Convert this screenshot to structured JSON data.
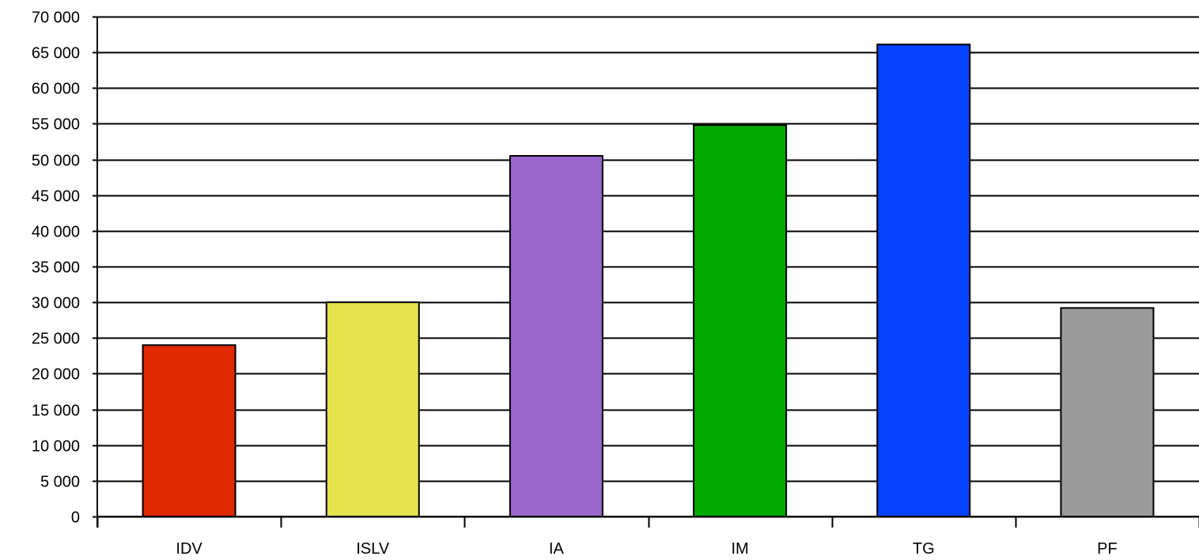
{
  "chart_data": {
    "type": "bar",
    "categories": [
      "IDV",
      "ISLV",
      "IA",
      "IM",
      "TG",
      "PF"
    ],
    "values": [
      24000,
      30000,
      50500,
      54800,
      66100,
      29200
    ],
    "colors": [
      "#dd2800",
      "#e6e24e",
      "#9966cc",
      "#00a800",
      "#0443fb",
      "#9b9b9b"
    ],
    "ylim": [
      0,
      70000
    ],
    "yticks": [
      0,
      5000,
      10000,
      15000,
      20000,
      25000,
      30000,
      35000,
      40000,
      45000,
      50000,
      55000,
      60000,
      65000,
      70000
    ],
    "ytick_labels": [
      "0",
      "5 000",
      "10 000",
      "15 000",
      "20 000",
      "25 000",
      "30 000",
      "35 000",
      "40 000",
      "45 000",
      "50 000",
      "55 000",
      "60 000",
      "65 000",
      "70 000"
    ],
    "grid": true,
    "legend": false
  }
}
